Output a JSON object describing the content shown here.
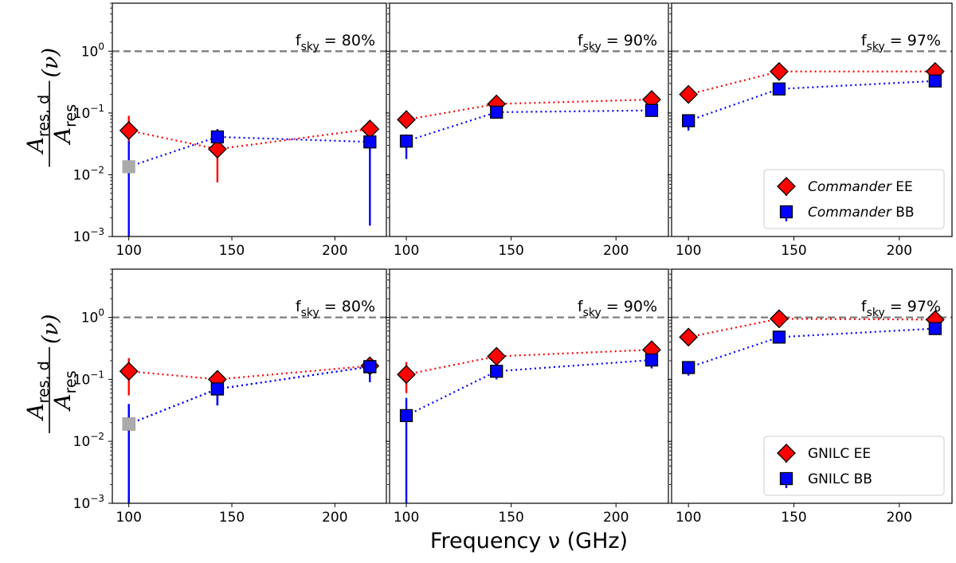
{
  "chart_data": [
    {
      "type": "scatter",
      "row": 0,
      "col": 0,
      "fsky_label": "= 80%",
      "x": [
        100,
        143,
        217
      ],
      "xlim": [
        92,
        225
      ],
      "xticks": [
        100,
        150,
        200
      ],
      "ylim": [
        0.001,
        6
      ],
      "yscale": "log",
      "reference_line": 1,
      "series": [
        {
          "name": "Commander EE",
          "marker": "diamond",
          "color": "#ff0000",
          "values": [
            0.052,
            0.026,
            0.055
          ],
          "err_lo": [
            0.03,
            0.0075,
            0.04
          ],
          "err_hi": [
            0.09,
            0.033,
            0.07
          ]
        },
        {
          "name": "Commander BB",
          "marker": "square",
          "color": "#0000ff",
          "values": [
            0.0135,
            0.041,
            0.034
          ],
          "err_lo": [
            0.001,
            0.033,
            0.0015
          ],
          "err_hi": [
            0.035,
            0.055,
            0.045
          ],
          "point_colors": [
            "#aaaaaa",
            null,
            null
          ]
        }
      ]
    },
    {
      "type": "scatter",
      "row": 0,
      "col": 1,
      "fsky_label": "= 90%",
      "x": [
        100,
        143,
        217
      ],
      "xlim": [
        92,
        225
      ],
      "xticks": [
        100,
        150,
        200
      ],
      "ylim": [
        0.001,
        6
      ],
      "yscale": "log",
      "reference_line": 1,
      "series": [
        {
          "name": "Commander EE",
          "marker": "diamond",
          "color": "#ff0000",
          "values": [
            0.078,
            0.14,
            0.165
          ],
          "err_lo": [
            0.06,
            0.125,
            0.15
          ],
          "err_hi": [
            0.11,
            0.155,
            0.18
          ]
        },
        {
          "name": "Commander BB",
          "marker": "square",
          "color": "#0000ff",
          "values": [
            0.035,
            0.103,
            0.11
          ],
          "err_lo": [
            0.018,
            0.09,
            0.09
          ],
          "err_hi": [
            0.045,
            0.115,
            0.13
          ]
        }
      ]
    },
    {
      "type": "scatter",
      "row": 0,
      "col": 2,
      "fsky_label": "= 97%",
      "x": [
        100,
        143,
        217
      ],
      "xlim": [
        92,
        225
      ],
      "xticks": [
        100,
        150,
        200
      ],
      "ylim": [
        0.001,
        6
      ],
      "yscale": "log",
      "reference_line": 1,
      "series": [
        {
          "name": "Commander EE",
          "marker": "diamond",
          "color": "#ff0000",
          "values": [
            0.2,
            0.47,
            0.47
          ],
          "err_lo": [
            0.18,
            0.45,
            0.45
          ],
          "err_hi": [
            0.22,
            0.49,
            0.49
          ]
        },
        {
          "name": "Commander BB",
          "marker": "square",
          "color": "#0000ff",
          "values": [
            0.075,
            0.245,
            0.33
          ],
          "err_lo": [
            0.052,
            0.225,
            0.3
          ],
          "err_hi": [
            0.09,
            0.26,
            0.36
          ]
        }
      ]
    },
    {
      "type": "scatter",
      "row": 1,
      "col": 0,
      "fsky_label": "= 80%",
      "x": [
        100,
        143,
        217
      ],
      "xlim": [
        92,
        225
      ],
      "xticks": [
        100,
        150,
        200
      ],
      "ylim": [
        0.001,
        6
      ],
      "yscale": "log",
      "reference_line": 1,
      "series": [
        {
          "name": "GNILC EE",
          "marker": "diamond",
          "color": "#ff0000",
          "values": [
            0.135,
            0.1,
            0.165
          ],
          "err_lo": [
            0.055,
            0.075,
            0.13
          ],
          "err_hi": [
            0.22,
            0.125,
            0.2
          ]
        },
        {
          "name": "GNILC BB",
          "marker": "square",
          "color": "#0000ff",
          "values": [
            0.019,
            0.07,
            0.16
          ],
          "err_lo": [
            0.001,
            0.038,
            0.09
          ],
          "err_hi": [
            0.04,
            0.1,
            0.2
          ]
        },
        {
          "name": "GNILC BB",
          "marker": "square",
          "color": "#0000ff",
          "values": [
            0.019,
            0.07,
            0.16
          ],
          "err_lo": [
            0.001,
            0.038,
            0.09
          ],
          "err_hi": [
            0.04,
            0.1,
            0.2
          ],
          "point_colors": [
            "#aaaaaa",
            null,
            null
          ]
        }
      ]
    },
    {
      "type": "scatter",
      "row": 1,
      "col": 1,
      "fsky_label": "= 90%",
      "x": [
        100,
        143,
        217
      ],
      "xlim": [
        92,
        225
      ],
      "xticks": [
        100,
        150,
        200
      ],
      "ylim": [
        0.001,
        6
      ],
      "yscale": "log",
      "reference_line": 1,
      "series": [
        {
          "name": "GNILC EE",
          "marker": "diamond",
          "color": "#ff0000",
          "values": [
            0.12,
            0.235,
            0.3
          ],
          "err_lo": [
            0.06,
            0.2,
            0.25
          ],
          "err_hi": [
            0.19,
            0.27,
            0.35
          ]
        },
        {
          "name": "GNILC BB",
          "marker": "square",
          "color": "#0000ff",
          "values": [
            0.026,
            0.135,
            0.205
          ],
          "err_lo": [
            0.001,
            0.1,
            0.15
          ],
          "err_hi": [
            0.05,
            0.17,
            0.26
          ]
        }
      ]
    },
    {
      "type": "scatter",
      "row": 1,
      "col": 2,
      "fsky_label": "= 97%",
      "x": [
        100,
        143,
        217
      ],
      "xlim": [
        92,
        225
      ],
      "xticks": [
        100,
        150,
        200
      ],
      "ylim": [
        0.001,
        6
      ],
      "yscale": "log",
      "reference_line": 1,
      "series": [
        {
          "name": "GNILC EE",
          "marker": "diamond",
          "color": "#ff0000",
          "values": [
            0.48,
            0.95,
            0.92
          ],
          "err_lo": [
            0.44,
            0.9,
            0.88
          ],
          "err_hi": [
            0.52,
            1.0,
            0.96
          ]
        },
        {
          "name": "GNILC BB",
          "marker": "square",
          "color": "#0000ff",
          "values": [
            0.155,
            0.48,
            0.66
          ],
          "err_lo": [
            0.115,
            0.44,
            0.6
          ],
          "err_hi": [
            0.19,
            0.52,
            0.72
          ]
        }
      ]
    }
  ],
  "labels": {
    "xlabel": "Frequency ν (GHz)",
    "ylabel_num_main": "A",
    "ylabel_num_sub": "res, d",
    "ylabel_den_main": "A",
    "ylabel_den_sub": "res",
    "ylabel_suffix": "(ν)",
    "fsky_main": "f",
    "fsky_sub": "sky",
    "ytick_labels": {
      "e0": "10",
      "e0_exp": "0",
      "e1": "10",
      "e1_exp": "−1",
      "e2": "10",
      "e2_exp": "−2",
      "e3": "10",
      "e3_exp": "−3"
    }
  },
  "legends": [
    {
      "row": 0,
      "position": "lower-right",
      "entries": [
        {
          "italic": "Commander",
          "text": " EE",
          "marker": "diamond",
          "color": "#ff0000"
        },
        {
          "italic": "Commander",
          "text": " BB",
          "marker": "square",
          "color": "#0000ff"
        }
      ]
    },
    {
      "row": 1,
      "position": "lower-right",
      "entries": [
        {
          "italic": "",
          "text": "GNILC EE",
          "marker": "diamond",
          "color": "#ff0000"
        },
        {
          "italic": "",
          "text": "GNILC BB",
          "marker": "square",
          "color": "#0000ff"
        }
      ]
    }
  ],
  "colors": {
    "ee": "#ff0000",
    "bb": "#0000ff",
    "masked": "#aaaaaa",
    "reference": "#777777"
  }
}
